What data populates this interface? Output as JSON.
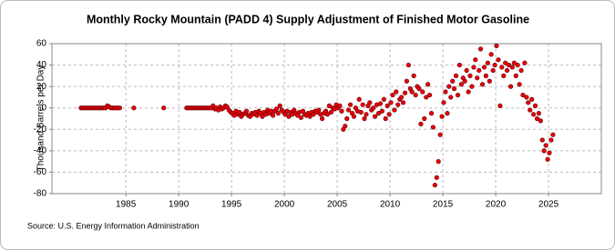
{
  "chart_data": {
    "type": "scatter",
    "title": "Monthly Rocky Mountain (PADD 4) Supply Adjustment of Finished Motor Gasoline",
    "y_label": "Thousand Barrels per Day",
    "source": "Source: U.S. Energy Information Administration",
    "color": "#e8000b",
    "grid": true,
    "xlim": [
      1978,
      2030
    ],
    "xticks": [
      1985,
      1990,
      1995,
      2000,
      2005,
      2010,
      2015,
      2020,
      2025
    ],
    "ylim": [
      -80,
      60
    ],
    "yticks": [
      -80,
      -60,
      -40,
      -20,
      0,
      20,
      40,
      60
    ],
    "x": [
      1980.75,
      1980.92,
      1981.08,
      1981.25,
      1981.42,
      1981.58,
      1981.75,
      1981.92,
      1982.08,
      1982.25,
      1982.42,
      1982.58,
      1982.75,
      1982.92,
      1983.08,
      1983.25,
      1983.42,
      1983.58,
      1983.75,
      1983.92,
      1984.08,
      1984.25,
      1984.42,
      1985.75,
      1988.58,
      1990.75,
      1990.92,
      1991.08,
      1991.25,
      1991.42,
      1991.58,
      1991.75,
      1991.92,
      1992.08,
      1992.25,
      1992.42,
      1992.58,
      1992.75,
      1992.92,
      1993.08,
      1993.25,
      1993.42,
      1993.58,
      1993.75,
      1993.92,
      1994.08,
      1994.25,
      1994.42,
      1994.58,
      1994.75,
      1994.92,
      1995.08,
      1995.25,
      1995.42,
      1995.58,
      1995.75,
      1995.92,
      1996.08,
      1996.25,
      1996.42,
      1996.58,
      1996.75,
      1996.92,
      1997.08,
      1997.25,
      1997.42,
      1997.58,
      1997.75,
      1997.92,
      1998.08,
      1998.25,
      1998.42,
      1998.58,
      1998.75,
      1998.92,
      1999.08,
      1999.25,
      1999.42,
      1999.58,
      1999.75,
      1999.92,
      2000.08,
      2000.25,
      2000.42,
      2000.58,
      2000.75,
      2000.92,
      2001.08,
      2001.25,
      2001.42,
      2001.58,
      2001.75,
      2001.92,
      2002.08,
      2002.25,
      2002.42,
      2002.58,
      2002.75,
      2002.92,
      2003.08,
      2003.25,
      2003.42,
      2003.58,
      2003.75,
      2003.92,
      2004.08,
      2004.25,
      2004.42,
      2004.58,
      2004.75,
      2004.92,
      2005.08,
      2005.25,
      2005.42,
      2005.58,
      2005.75,
      2005.92,
      2006.08,
      2006.25,
      2006.42,
      2006.58,
      2006.75,
      2006.92,
      2007.08,
      2007.25,
      2007.42,
      2007.58,
      2007.75,
      2007.92,
      2008.08,
      2008.25,
      2008.42,
      2008.58,
      2008.75,
      2008.92,
      2009.08,
      2009.25,
      2009.42,
      2009.58,
      2009.75,
      2009.92,
      2010.08,
      2010.25,
      2010.42,
      2010.58,
      2010.75,
      2010.92,
      2011.08,
      2011.25,
      2011.42,
      2011.58,
      2011.75,
      2011.92,
      2012.08,
      2012.25,
      2012.42,
      2012.58,
      2012.75,
      2012.92,
      2013.08,
      2013.25,
      2013.42,
      2013.58,
      2013.75,
      2013.92,
      2014.08,
      2014.25,
      2014.42,
      2014.58,
      2014.75,
      2014.92,
      2015.08,
      2015.25,
      2015.42,
      2015.58,
      2015.75,
      2015.92,
      2016.08,
      2016.25,
      2016.42,
      2016.58,
      2016.75,
      2016.92,
      2017.08,
      2017.25,
      2017.42,
      2017.58,
      2017.75,
      2017.92,
      2018.08,
      2018.25,
      2018.42,
      2018.58,
      2018.75,
      2018.92,
      2019.08,
      2019.25,
      2019.42,
      2019.58,
      2019.75,
      2019.92,
      2020.08,
      2020.25,
      2020.42,
      2020.58,
      2020.75,
      2020.92,
      2021.08,
      2021.25,
      2021.42,
      2021.58,
      2021.75,
      2021.92,
      2022.08,
      2022.25,
      2022.42,
      2022.58,
      2022.75,
      2022.92,
      2023.08,
      2023.25,
      2023.42,
      2023.58,
      2023.75,
      2023.92,
      2024.08,
      2024.25,
      2024.42,
      2024.58,
      2024.75,
      2024.92,
      2025.08,
      2025.25,
      2025.42
    ],
    "values": [
      0,
      0,
      0,
      0,
      0,
      0,
      0,
      0,
      0,
      0,
      0,
      0,
      0,
      0,
      0,
      2,
      1,
      0,
      0,
      0,
      0,
      0,
      0,
      0,
      0,
      0,
      0,
      0,
      0,
      0,
      0,
      0,
      0,
      0,
      0,
      0,
      0,
      0,
      0,
      0,
      2,
      -1,
      0,
      -2,
      1,
      -1,
      0,
      2,
      1,
      -2,
      -4,
      -5,
      -7,
      -3,
      -6,
      -4,
      -8,
      -6,
      -5,
      -3,
      -7,
      -8,
      -5,
      -6,
      -4,
      -7,
      -3,
      -5,
      -8,
      -4,
      -6,
      -2,
      -5,
      -3,
      -7,
      -3,
      -1,
      -5,
      2,
      -2,
      -4,
      -6,
      -3,
      -8,
      -4,
      -6,
      -2,
      -5,
      -7,
      -4,
      -9,
      -3,
      -6,
      -7,
      -5,
      -8,
      -4,
      -6,
      -3,
      -4,
      -2,
      -6,
      -10,
      -5,
      -3,
      -6,
      2,
      -4,
      0,
      -1,
      3,
      0,
      2,
      -3,
      -20,
      -17,
      -10,
      -2,
      3,
      -5,
      -8,
      0,
      -3,
      8,
      -4,
      3,
      -10,
      -6,
      2,
      5,
      -2,
      0,
      -8,
      3,
      -5,
      4,
      -3,
      8,
      -10,
      2,
      -6,
      5,
      12,
      -2,
      15,
      3,
      8,
      10,
      5,
      14,
      25,
      40,
      18,
      15,
      30,
      12,
      20,
      18,
      -15,
      15,
      -10,
      10,
      22,
      12,
      -5,
      -18,
      -72,
      -65,
      -50,
      -25,
      -8,
      5,
      15,
      -5,
      20,
      10,
      25,
      18,
      30,
      12,
      40,
      22,
      28,
      25,
      35,
      15,
      30,
      20,
      38,
      45,
      28,
      35,
      55,
      22,
      38,
      30,
      42,
      25,
      50,
      35,
      40,
      58,
      45,
      2,
      38,
      30,
      42,
      35,
      40,
      20,
      38,
      42,
      30,
      40,
      22,
      35,
      12,
      42,
      10,
      5,
      -2,
      8,
      -6,
      2,
      -10,
      -5,
      -12,
      -30,
      -40,
      -35,
      -48,
      -42,
      -30,
      -25
    ]
  }
}
